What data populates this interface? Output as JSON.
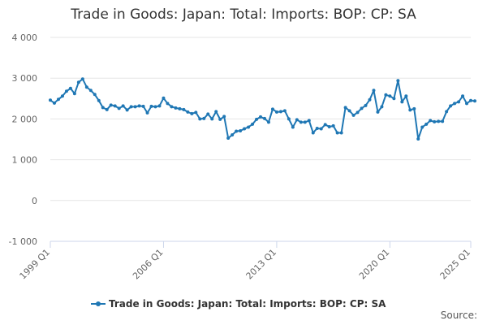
{
  "title": "Trade in Goods: Japan: Total: Imports: BOP: CP: SA",
  "source_label": "Source:",
  "colors": {
    "series": "#1f77b4",
    "grid": "#e6e6e6",
    "axis": "#ccd6eb",
    "text": "#666666"
  },
  "chart_data": {
    "type": "line",
    "title": "Trade in Goods: Japan: Total: Imports: BOP: CP: SA",
    "xlabel": "",
    "ylabel": "",
    "ylim": [
      -1000,
      4000
    ],
    "yticks": [
      -1000,
      0,
      1000,
      2000,
      3000,
      4000
    ],
    "ytick_labels": [
      "-1 000",
      "0",
      "1 000",
      "2 000",
      "3 000",
      "4 000"
    ],
    "xticks": [
      "1999 Q1",
      "2006 Q1",
      "2013 Q1",
      "2020 Q1",
      "2025 Q1"
    ],
    "x_start": "1999 Q1",
    "legend_position": "bottom",
    "grid": true,
    "series": [
      {
        "name": "Trade in Goods: Japan: Total: Imports: BOP: CP: SA",
        "values": [
          2460,
          2390,
          2480,
          2560,
          2680,
          2750,
          2620,
          2900,
          2980,
          2780,
          2700,
          2600,
          2450,
          2280,
          2230,
          2340,
          2320,
          2260,
          2320,
          2220,
          2300,
          2300,
          2320,
          2310,
          2150,
          2310,
          2300,
          2320,
          2510,
          2380,
          2300,
          2270,
          2250,
          2230,
          2170,
          2130,
          2160,
          2000,
          2010,
          2120,
          2000,
          2180,
          1990,
          2060,
          1530,
          1610,
          1700,
          1710,
          1760,
          1800,
          1870,
          1990,
          2050,
          2010,
          1920,
          2240,
          2170,
          2180,
          2200,
          2000,
          1800,
          1980,
          1920,
          1920,
          1960,
          1660,
          1770,
          1760,
          1860,
          1810,
          1830,
          1660,
          1660,
          2280,
          2200,
          2090,
          2160,
          2260,
          2330,
          2470,
          2700,
          2170,
          2300,
          2590,
          2560,
          2500,
          2940,
          2420,
          2560,
          2220,
          2250,
          1510,
          1800,
          1870,
          1960,
          1930,
          1940,
          1940,
          2180,
          2320,
          2380,
          2420,
          2560,
          2380,
          2450,
          2440
        ]
      }
    ]
  }
}
